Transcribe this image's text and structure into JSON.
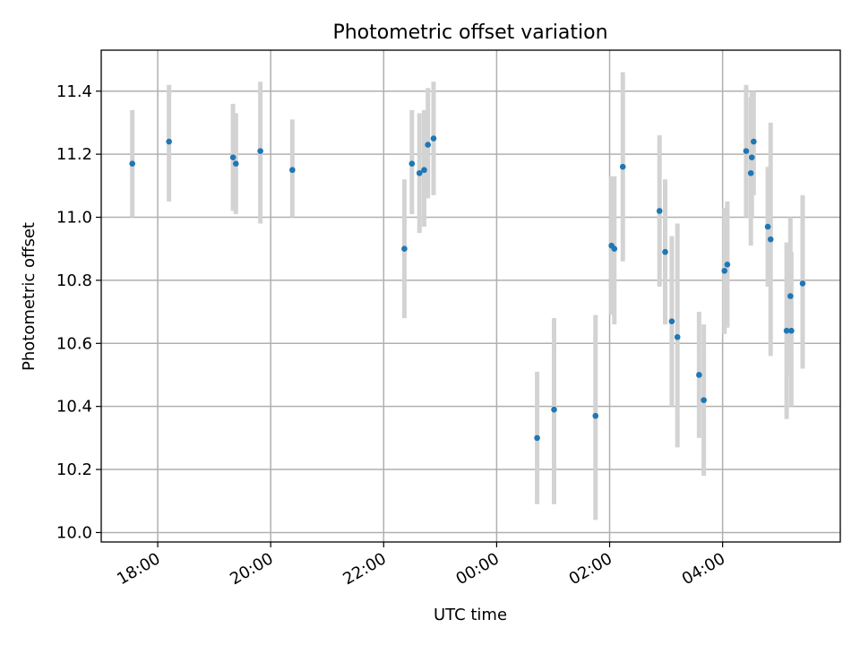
{
  "chart_data": {
    "type": "scatter",
    "title": "Photometric offset variation",
    "xlabel": "UTC time",
    "ylabel": "Photometric offset",
    "x_tick_labels": [
      "18:00",
      "20:00",
      "22:00",
      "00:00",
      "02:00",
      "04:00"
    ],
    "x_ticks": [
      "18:00",
      "20:00",
      "22:00",
      "00:00",
      "02:00",
      "04:00"
    ],
    "xlim": [
      "17:00",
      "06:05"
    ],
    "ylim": [
      9.97,
      11.53
    ],
    "y_ticks": [
      10.0,
      10.2,
      10.4,
      10.6,
      10.8,
      11.0,
      11.2,
      11.4
    ],
    "y_tick_labels": [
      "10.0",
      "10.2",
      "10.4",
      "10.6",
      "10.8",
      "11.0",
      "11.2",
      "11.4"
    ],
    "grid": true,
    "colors": {
      "points": "#1f77b4",
      "errorbars": "#d3d3d3",
      "grid": "#b0b0b0"
    },
    "series": [
      {
        "points": [
          {
            "x": "17:33",
            "y": 11.17,
            "lo": 11.0,
            "hi": 11.34
          },
          {
            "x": "18:12",
            "y": 11.24,
            "lo": 11.05,
            "hi": 11.42
          },
          {
            "x": "19:20",
            "y": 11.19,
            "lo": 11.02,
            "hi": 11.36
          },
          {
            "x": "19:23",
            "y": 11.17,
            "lo": 11.01,
            "hi": 11.33
          },
          {
            "x": "19:49",
            "y": 11.21,
            "lo": 10.98,
            "hi": 11.43
          },
          {
            "x": "20:23",
            "y": 11.15,
            "lo": 11.0,
            "hi": 11.31
          },
          {
            "x": "22:22",
            "y": 10.9,
            "lo": 10.68,
            "hi": 11.12
          },
          {
            "x": "22:30",
            "y": 11.17,
            "lo": 11.01,
            "hi": 11.34
          },
          {
            "x": "22:38",
            "y": 11.14,
            "lo": 10.95,
            "hi": 11.33
          },
          {
            "x": "22:43",
            "y": 11.15,
            "lo": 10.97,
            "hi": 11.34
          },
          {
            "x": "22:47",
            "y": 11.23,
            "lo": 11.06,
            "hi": 11.41
          },
          {
            "x": "22:53",
            "y": 11.25,
            "lo": 11.07,
            "hi": 11.43
          },
          {
            "x": "00:43",
            "y": 10.3,
            "lo": 10.09,
            "hi": 10.51
          },
          {
            "x": "01:01",
            "y": 10.39,
            "lo": 10.09,
            "hi": 10.68
          },
          {
            "x": "01:45",
            "y": 10.37,
            "lo": 10.04,
            "hi": 10.69
          },
          {
            "x": "02:02",
            "y": 10.91,
            "lo": 10.69,
            "hi": 11.13
          },
          {
            "x": "02:05",
            "y": 10.9,
            "lo": 10.66,
            "hi": 11.13
          },
          {
            "x": "02:14",
            "y": 11.16,
            "lo": 10.86,
            "hi": 11.46
          },
          {
            "x": "02:53",
            "y": 11.02,
            "lo": 10.78,
            "hi": 11.26
          },
          {
            "x": "02:59",
            "y": 10.89,
            "lo": 10.66,
            "hi": 11.12
          },
          {
            "x": "03:06",
            "y": 10.67,
            "lo": 10.4,
            "hi": 10.94
          },
          {
            "x": "03:12",
            "y": 10.62,
            "lo": 10.27,
            "hi": 10.98
          },
          {
            "x": "03:35",
            "y": 10.5,
            "lo": 10.3,
            "hi": 10.7
          },
          {
            "x": "03:40",
            "y": 10.42,
            "lo": 10.18,
            "hi": 10.66
          },
          {
            "x": "04:02",
            "y": 10.83,
            "lo": 10.63,
            "hi": 11.03
          },
          {
            "x": "04:05",
            "y": 10.85,
            "lo": 10.65,
            "hi": 11.05
          },
          {
            "x": "04:25",
            "y": 11.21,
            "lo": 11.0,
            "hi": 11.42
          },
          {
            "x": "04:30",
            "y": 11.14,
            "lo": 10.91,
            "hi": 11.38
          },
          {
            "x": "04:31",
            "y": 11.19,
            "lo": 11.0,
            "hi": 11.4
          },
          {
            "x": "04:33",
            "y": 11.24,
            "lo": 11.07,
            "hi": 11.4
          },
          {
            "x": "04:48",
            "y": 10.97,
            "lo": 10.78,
            "hi": 11.16
          },
          {
            "x": "04:51",
            "y": 10.93,
            "lo": 10.56,
            "hi": 11.3
          },
          {
            "x": "05:08",
            "y": 10.64,
            "lo": 10.36,
            "hi": 10.92
          },
          {
            "x": "05:12",
            "y": 10.75,
            "lo": 10.5,
            "hi": 11.0
          },
          {
            "x": "05:13",
            "y": 10.64,
            "lo": 10.4,
            "hi": 10.89
          },
          {
            "x": "05:25",
            "y": 10.79,
            "lo": 10.52,
            "hi": 11.07
          }
        ]
      }
    ]
  }
}
